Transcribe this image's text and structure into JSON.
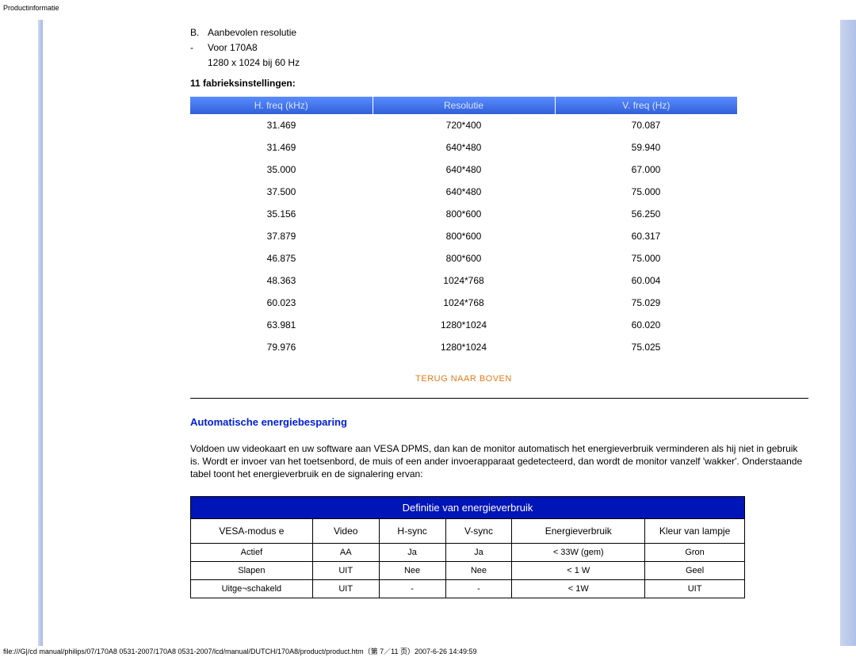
{
  "page_label": "Productinformatie",
  "list_b": {
    "letter": "B.",
    "title": "Aanbevolen resolutie",
    "dash": "-",
    "model": "Voor 170A8",
    "res": "1280 x 1024 bij 60 Hz"
  },
  "factory_label": "11 fabrieksinstellingen:",
  "freq_table": {
    "headers": [
      "H. freq (kHz)",
      "Resolutie",
      "V. freq (Hz)"
    ],
    "rows": [
      [
        "31.469",
        "720*400",
        "70.087"
      ],
      [
        "31.469",
        "640*480",
        "59.940"
      ],
      [
        "35.000",
        "640*480",
        "67.000"
      ],
      [
        "37.500",
        "640*480",
        "75.000"
      ],
      [
        "35.156",
        "800*600",
        "56.250"
      ],
      [
        "37.879",
        "800*600",
        "60.317"
      ],
      [
        "46.875",
        "800*600",
        "75.000"
      ],
      [
        "48.363",
        "1024*768",
        "60.004"
      ],
      [
        "60.023",
        "1024*768",
        "75.029"
      ],
      [
        "63.981",
        "1280*1024",
        "60.020"
      ],
      [
        "79.976",
        "1280*1024",
        "75.025"
      ]
    ],
    "header_bg": "#3e6ae1",
    "header_color": "#d8e4ff"
  },
  "back_link": "TERUG NAAR BOVEN",
  "back_link_color": "#e67817",
  "section_heading": "Automatische energiebesparing",
  "heading_color": "#0020d8",
  "body_text": "Voldoen uw videokaart en uw software aan VESA DPMS, dan kan de monitor automatisch het energieverbruik verminderen als hij niet in gebruik is. Wordt er invoer van het toetsenbord, de muis of een ander invoerapparaat gedetecteerd, dan wordt de monitor vanzelf 'wakker'. Onderstaande tabel toont het energieverbruik en de signalering ervan:",
  "energy_table": {
    "title": "Definitie van energieverbruik",
    "title_bg": "#0015b8",
    "columns": [
      "VESA-modus e",
      "Video",
      "H-sync",
      "V-sync",
      "Energieverbruik",
      "Kleur van lampje"
    ],
    "rows": [
      [
        "Actief",
        "AA",
        "Ja",
        "Ja",
        "< 33W (gem)",
        "Gron"
      ],
      [
        "Slapen",
        "UIT",
        "Nee",
        "Nee",
        "< 1 W",
        "Geel"
      ],
      [
        "Uitge¬schakeld",
        "UIT",
        "-",
        "-",
        "< 1W",
        "UIT"
      ]
    ],
    "col_widths": [
      "22%",
      "12%",
      "12%",
      "12%",
      "24%",
      "18%"
    ]
  },
  "footer_path": "file:///G|/cd manual/philips/07/170A8 0531-2007/170A8 0531-2007/lcd/manual/DUTCH/170A8/product/product.htm（第 7／11 页）2007-6-26 14:49:59"
}
